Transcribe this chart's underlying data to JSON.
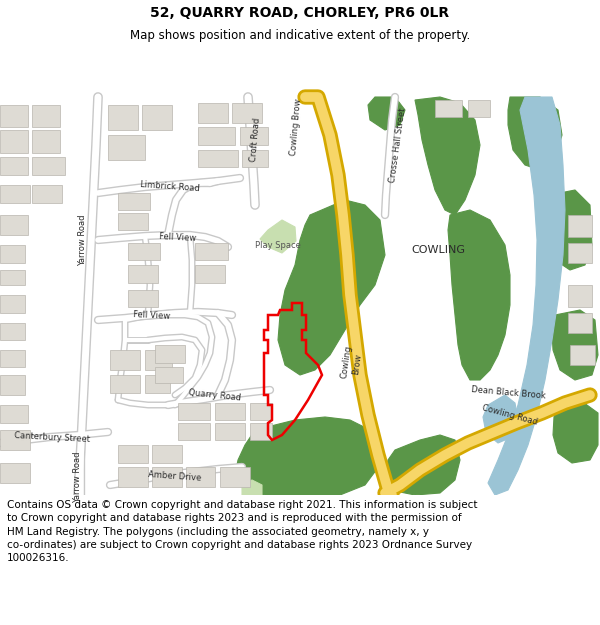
{
  "title": "52, QUARRY ROAD, CHORLEY, PR6 0LR",
  "subtitle": "Map shows position and indicative extent of the property.",
  "footer": "Contains OS data © Crown copyright and database right 2021. This information is subject\nto Crown copyright and database rights 2023 and is reproduced with the permission of\nHM Land Registry. The polygons (including the associated geometry, namely x, y\nco-ordinates) are subject to Crown copyright and database rights 2023 Ordnance Survey\n100026316.",
  "bg_color": "#f2f0eb",
  "road_color": "#ffffff",
  "road_outline_color": "#c8c8c8",
  "major_road_color": "#f7d668",
  "major_road_outline_color": "#d4a800",
  "green_color": "#5a9648",
  "light_green_color": "#c8dfb0",
  "water_color": "#9bc4d5",
  "building_color": "#dedbd4",
  "building_outline_color": "#b8b5ae",
  "red_polygon_color": "#ee0000",
  "title_fontsize": 10,
  "subtitle_fontsize": 8.5,
  "footer_fontsize": 7.5,
  "figsize": [
    6.0,
    6.25
  ],
  "dpi": 100
}
